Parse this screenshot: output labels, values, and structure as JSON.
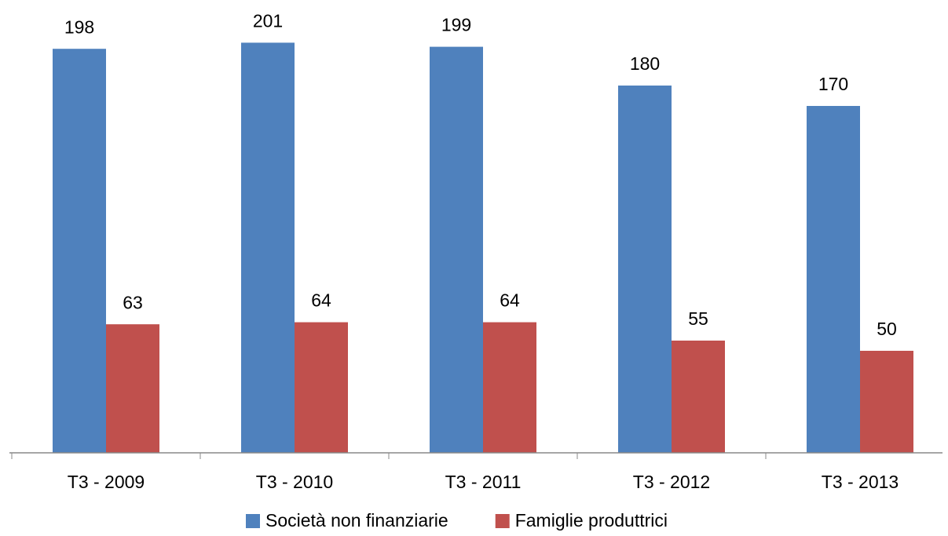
{
  "chart_data": {
    "type": "bar",
    "categories": [
      "T3 - 2009",
      "T3 - 2010",
      "T3 - 2011",
      "T3 - 2012",
      "T3 - 2013"
    ],
    "series": [
      {
        "name": "Società non finanziarie",
        "color": "#4f81bd",
        "values": [
          198,
          201,
          199,
          180,
          170
        ]
      },
      {
        "name": "Famiglie produttrici",
        "color": "#c0504d",
        "values": [
          63,
          64,
          64,
          55,
          50
        ]
      }
    ],
    "ylim": [
      0,
      220
    ]
  }
}
